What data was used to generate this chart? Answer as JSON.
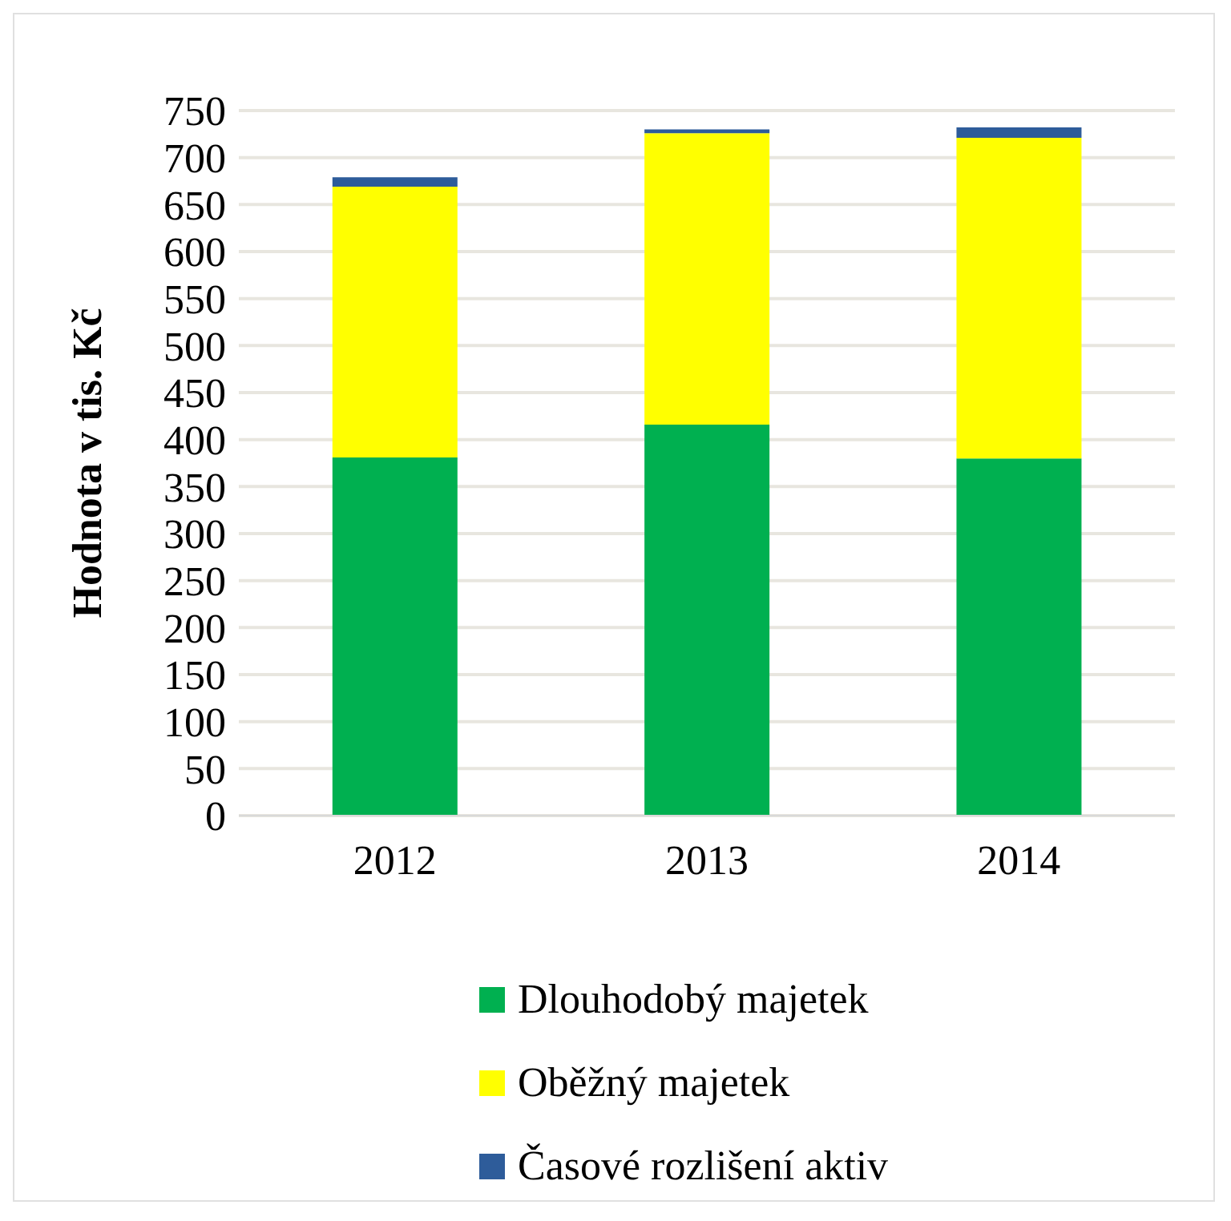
{
  "chart_data": {
    "type": "bar",
    "stacked": true,
    "ylabel": "Hodnota v tis. Kč",
    "categories": [
      "2012",
      "2013",
      "2014"
    ],
    "series": [
      {
        "name": "Dlouhodobý majetek",
        "color": "#00b050",
        "values": [
          381,
          416,
          380
        ]
      },
      {
        "name": "Oběžný majetek",
        "color": "#ffff00",
        "values": [
          288,
          310,
          341
        ]
      },
      {
        "name": "Časové rozlišení aktiv",
        "color": "#2e5c9a",
        "values": [
          10,
          4,
          11
        ]
      }
    ],
    "ylim": [
      0,
      750
    ],
    "yticks": [
      0,
      50,
      100,
      150,
      200,
      250,
      300,
      350,
      400,
      450,
      500,
      550,
      600,
      650,
      700,
      750
    ],
    "grid": "y",
    "legend": "bottom"
  }
}
